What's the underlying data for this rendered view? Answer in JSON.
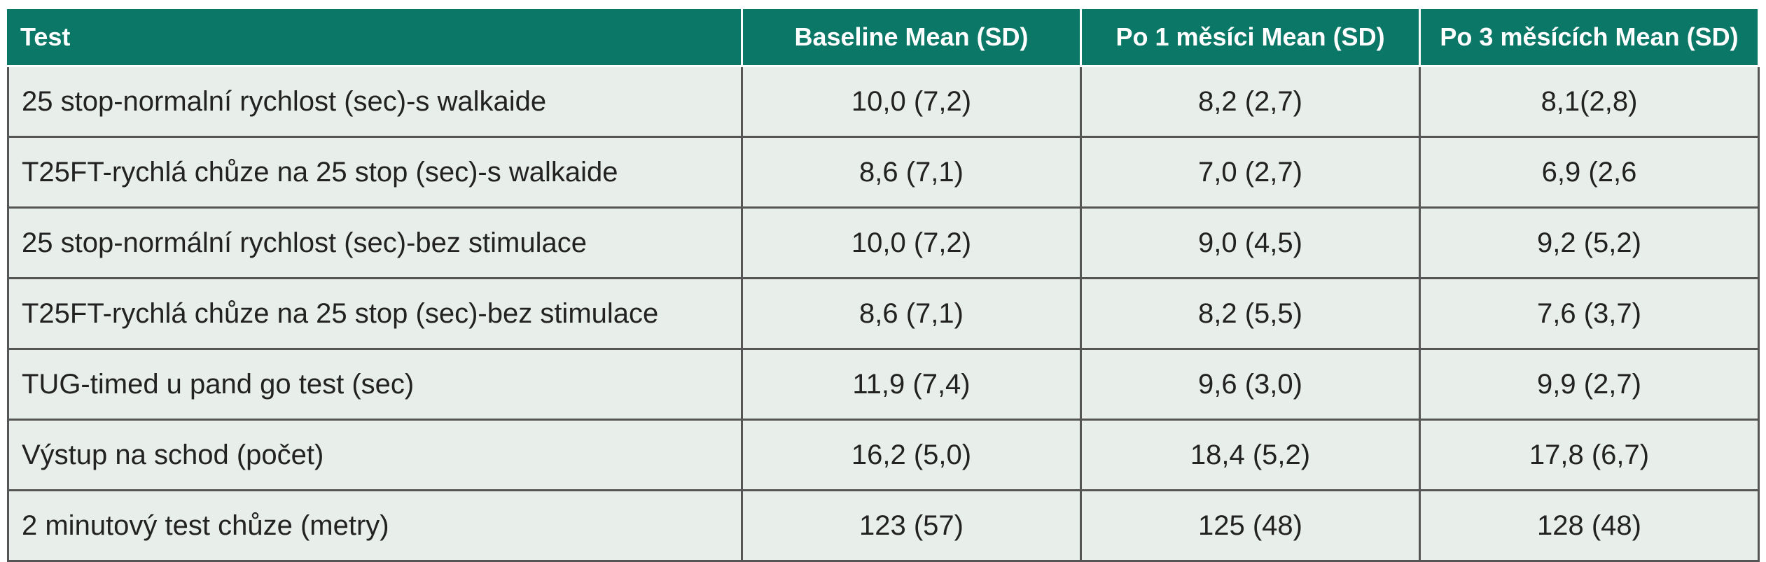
{
  "table": {
    "headers": [
      "Test",
      "Baseline Mean (SD)",
      "Po 1 měsíci Mean (SD)",
      "Po 3 měsících Mean (SD)"
    ],
    "rows": [
      [
        "25 stop-normalní rychlost (sec)-s walkaide",
        "10,0 (7,2)",
        "8,2 (2,7)",
        "8,1(2,8)"
      ],
      [
        "T25FT-rychlá chůze na 25 stop (sec)-s walkaide",
        "8,6 (7,1)",
        "7,0 (2,7)",
        "6,9 (2,6"
      ],
      [
        "25 stop-normální rychlost (sec)-bez stimulace",
        "10,0 (7,2)",
        "9,0 (4,5)",
        "9,2 (5,2)"
      ],
      [
        "T25FT-rychlá chůze na 25 stop (sec)-bez stimulace",
        "8,6 (7,1)",
        "8,2 (5,5)",
        "7,6 (3,7)"
      ],
      [
        "TUG-timed u pand go test  (sec)",
        "11,9 (7,4)",
        "9,6 (3,0)",
        "9,9 (2,7)"
      ],
      [
        "Výstup na schod (počet)",
        "16,2 (5,0)",
        "18,4 (5,2)",
        "17,8 (6,7)"
      ],
      [
        "2 minutový test chůze (metry)",
        "123 (57)",
        "125 (48)",
        "128 (48)"
      ]
    ]
  },
  "colors": {
    "header_bg": "#0b7766",
    "header_text": "#ffffff",
    "cell_bg": "#e8eeea",
    "cell_border": "#555555"
  }
}
